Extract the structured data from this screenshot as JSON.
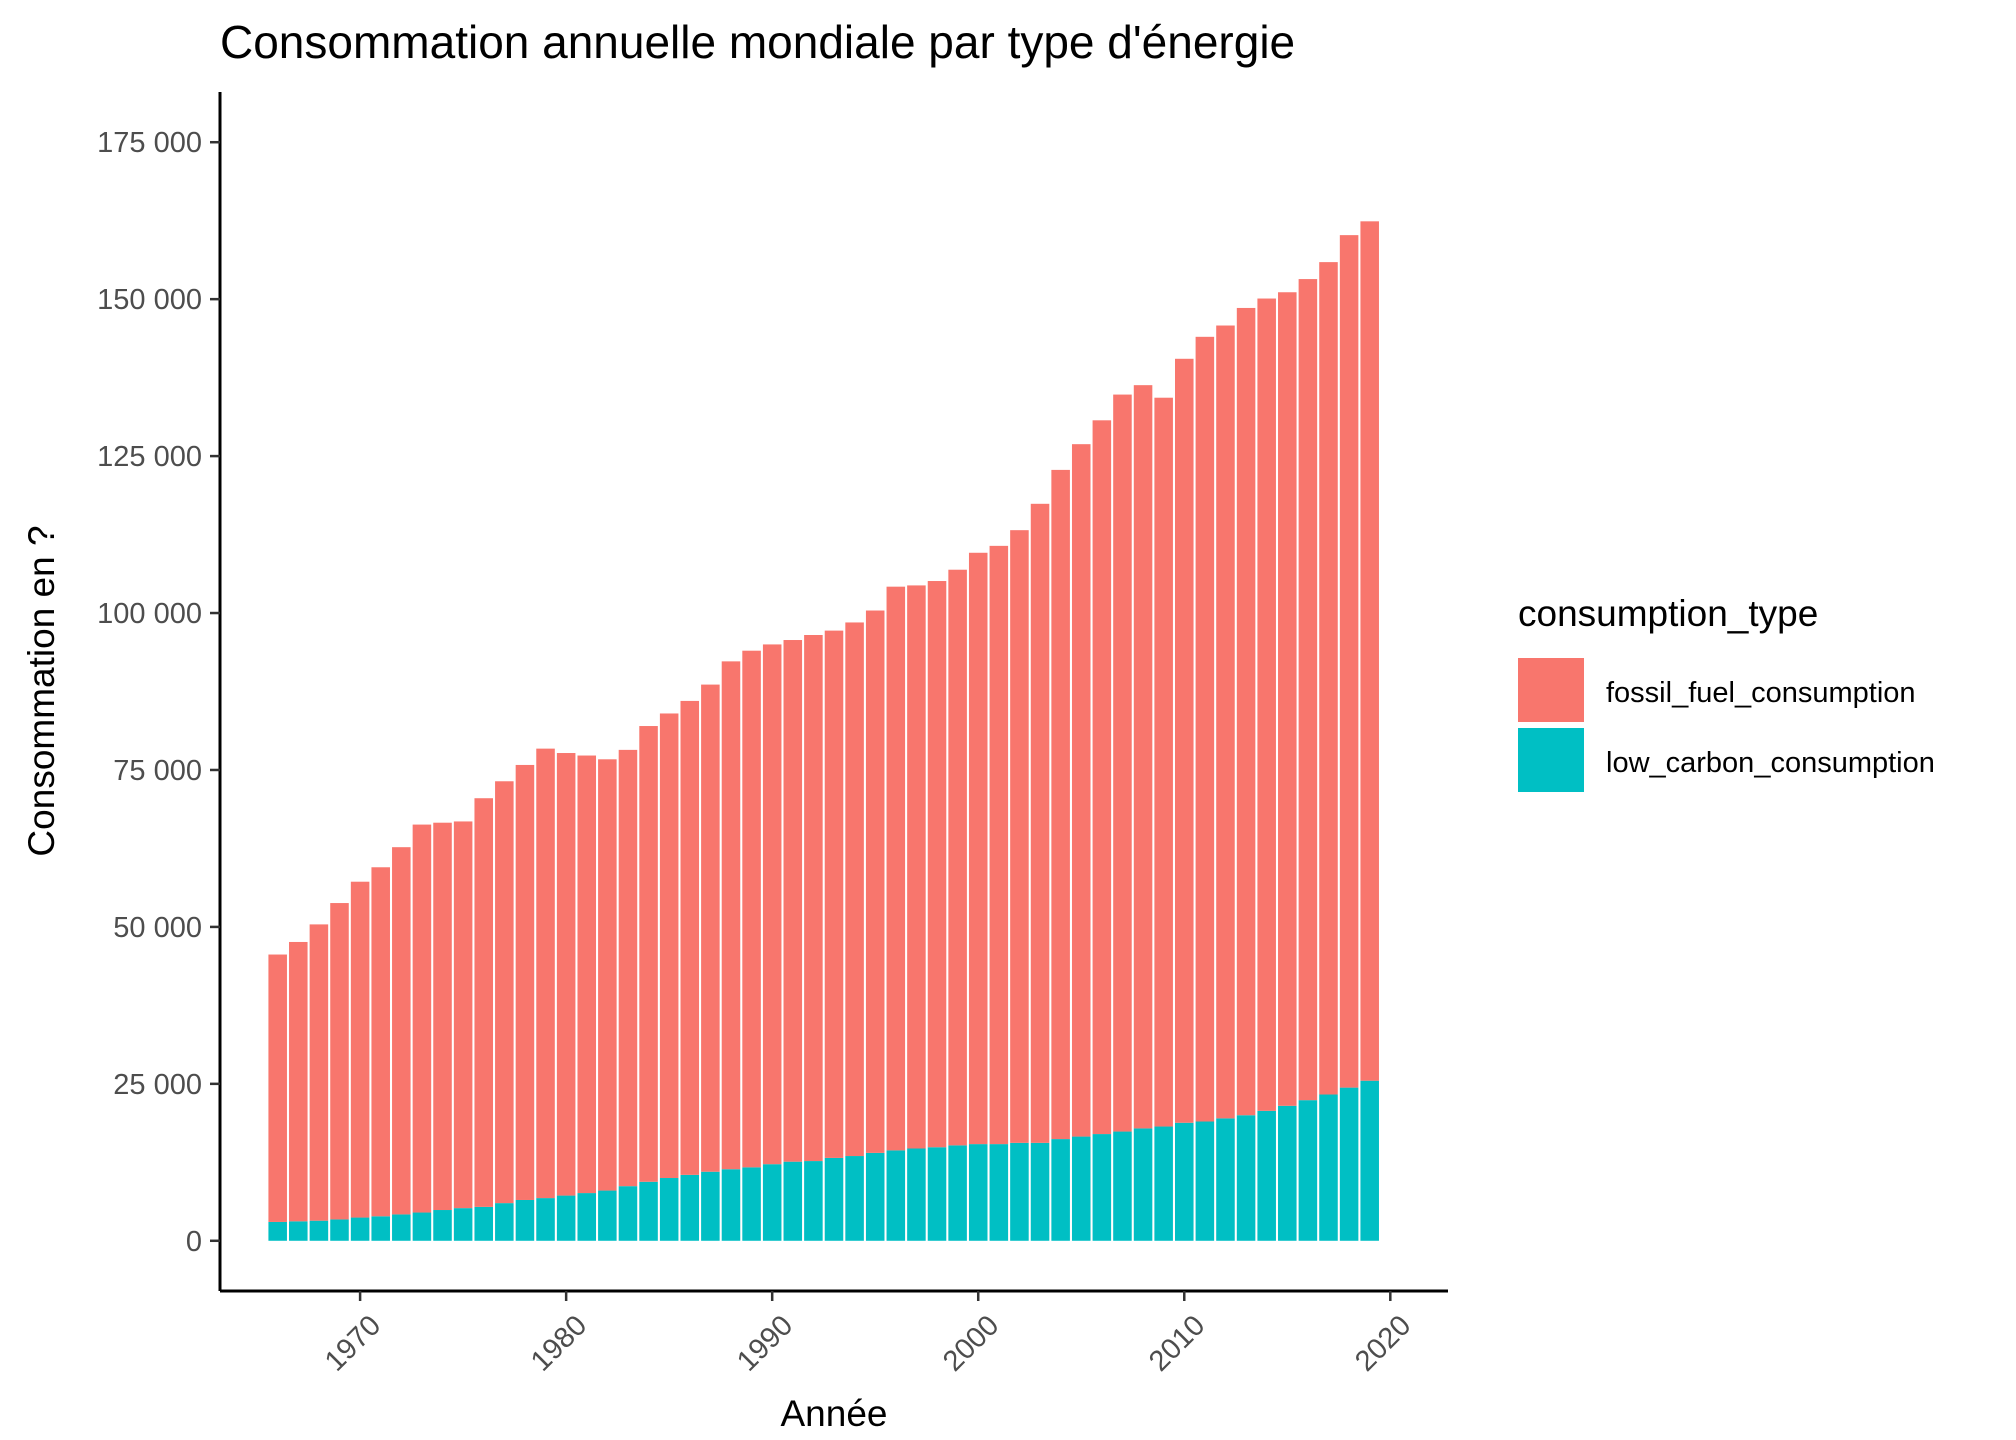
{
  "chart_data": {
    "type": "bar",
    "stacked": true,
    "title": "Consommation annuelle mondiale par type d'énergie",
    "xlabel": "Année",
    "ylabel": "Consommation en ?",
    "xlim": [
      1963.2,
      2022.8
    ],
    "ylim": [
      -8000,
      183000
    ],
    "x_ticks": [
      1970,
      1980,
      1990,
      2000,
      2010,
      2020
    ],
    "x_tick_labels": [
      "1970",
      "1980",
      "1990",
      "2000",
      "2010",
      "2020"
    ],
    "y_ticks": [
      0,
      25000,
      50000,
      75000,
      100000,
      125000,
      150000,
      175000
    ],
    "y_tick_labels": [
      "0",
      "25 000",
      "50 000",
      "75 000",
      "100 000",
      "125 000",
      "150 000",
      "175 000"
    ],
    "grid": false,
    "legend_position": "right",
    "legend_title": "consumption_type",
    "x": [
      1966,
      1967,
      1968,
      1969,
      1970,
      1971,
      1972,
      1973,
      1974,
      1975,
      1976,
      1977,
      1978,
      1979,
      1980,
      1981,
      1982,
      1983,
      1984,
      1985,
      1986,
      1987,
      1988,
      1989,
      1990,
      1991,
      1992,
      1993,
      1994,
      1995,
      1996,
      1997,
      1998,
      1999,
      2000,
      2001,
      2002,
      2003,
      2004,
      2005,
      2006,
      2007,
      2008,
      2009,
      2010,
      2011,
      2012,
      2013,
      2014,
      2015,
      2016,
      2017,
      2018,
      2019
    ],
    "series": [
      {
        "name": "low_carbon_consumption",
        "color": "#00BFC4",
        "values": [
          3000,
          3100,
          3200,
          3400,
          3700,
          3900,
          4200,
          4500,
          4900,
          5200,
          5400,
          6000,
          6500,
          6800,
          7200,
          7600,
          8000,
          8700,
          9400,
          10000,
          10500,
          11000,
          11400,
          11700,
          12200,
          12600,
          12700,
          13200,
          13500,
          14000,
          14400,
          14700,
          14900,
          15200,
          15400,
          15400,
          15600,
          15600,
          16200,
          16600,
          17000,
          17400,
          17900,
          18200,
          18800,
          19000,
          19500,
          20000,
          20700,
          21500,
          22400,
          23300,
          24400,
          25500
        ]
      },
      {
        "name": "fossil_fuel_consumption",
        "color": "#F8766D",
        "values": [
          42600,
          44500,
          47200,
          50400,
          53500,
          55600,
          58500,
          61800,
          61700,
          61600,
          65100,
          67200,
          69300,
          71600,
          70500,
          69700,
          68700,
          69500,
          72600,
          74000,
          75500,
          77600,
          80900,
          82300,
          82800,
          83100,
          83800,
          84000,
          85000,
          86400,
          89800,
          89700,
          90200,
          91700,
          94200,
          95300,
          97600,
          101800,
          106600,
          110300,
          113700,
          117400,
          118400,
          116100,
          121700,
          125000,
          126300,
          128600,
          129400,
          129600,
          130800,
          132600,
          135800,
          136900
        ]
      }
    ]
  }
}
